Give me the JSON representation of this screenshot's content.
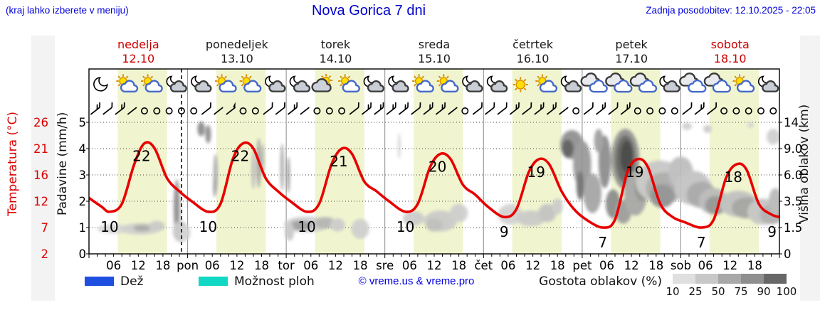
{
  "header": {
    "hint": "(kraj lahko izberete v meniju)",
    "title": "Nova Gorica 7 dni",
    "updated": "Zadnja posodobitev: 12.10.2025 - 22:05"
  },
  "days": [
    {
      "name": "nedelja",
      "date": "12.10",
      "color": "#cc0000"
    },
    {
      "name": "ponedeljek",
      "date": "13.10",
      "color": "#1a1a1a"
    },
    {
      "name": "torek",
      "date": "14.10",
      "color": "#1a1a1a"
    },
    {
      "name": "sreda",
      "date": "15.10",
      "color": "#1a1a1a"
    },
    {
      "name": "četrtek",
      "date": "16.10",
      "color": "#1a1a1a"
    },
    {
      "name": "petek",
      "date": "17.10",
      "color": "#1a1a1a"
    },
    {
      "name": "sobota",
      "date": "18.10",
      "color": "#cc0000"
    }
  ],
  "axes": {
    "temp_title": "Temperatura (°C)",
    "temp_ticks": [
      "26",
      "21",
      "16",
      "12",
      "7",
      "2"
    ],
    "precip_title": "Padavine (mm/h)",
    "precip_ticks": [
      "5",
      "4",
      "3",
      "2",
      "1",
      "0"
    ],
    "height_title": "Višina oblakov (km)",
    "height_ticks": [
      "14",
      "9.0",
      "6.0",
      "3.5",
      "1.5",
      "0"
    ],
    "hour_labels": [
      "06",
      "12",
      "18"
    ],
    "day_abbr": [
      "pon",
      "tor",
      "sre",
      "čet",
      "pet",
      "sob"
    ]
  },
  "legend": {
    "rain_label": "Dež",
    "rain_color": "#1f4fe0",
    "showers_label": "Možnost ploh",
    "showers_color": "#10d8c4",
    "copyright": "© vreme.us & vreme.pro",
    "density_label": "Gostota oblakov (%)",
    "density_ticks": [
      "10",
      "25",
      "50",
      "75",
      "90",
      "100"
    ],
    "density_colors": [
      "#dfdfdf",
      "#c8c8c8",
      "#a8a8a8",
      "#8f8f8f",
      "#686868"
    ]
  },
  "chart_data": {
    "type": "line",
    "title": "Nova Gorica 7 dni",
    "x_unit": "hours from 12.10.2025 00:00",
    "x_range": [
      0,
      168
    ],
    "now_hour": 22.5,
    "daylight": [
      7,
      19
    ],
    "band_color": "#f1f5cf",
    "temp_scale_map": [
      [
        2,
        0
      ],
      [
        7,
        1
      ],
      [
        12,
        2
      ],
      [
        16,
        3
      ],
      [
        21,
        4
      ],
      [
        26,
        5
      ]
    ],
    "height_scale_map": [
      [
        0,
        0
      ],
      [
        1.5,
        1
      ],
      [
        3.5,
        2
      ],
      [
        6,
        3
      ],
      [
        9,
        4
      ],
      [
        14,
        5
      ]
    ],
    "temperature": {
      "color": "#e80000",
      "points": [
        [
          0,
          12.5
        ],
        [
          3,
          11
        ],
        [
          5,
          10
        ],
        [
          8,
          11.5
        ],
        [
          11,
          18
        ],
        [
          13.5,
          22
        ],
        [
          16,
          21
        ],
        [
          19,
          15.5
        ],
        [
          22,
          13.5
        ],
        [
          25,
          12
        ],
        [
          29,
          10
        ],
        [
          32,
          11.5
        ],
        [
          35,
          19
        ],
        [
          37.5,
          22
        ],
        [
          40,
          21
        ],
        [
          43,
          15.5
        ],
        [
          46,
          13.5
        ],
        [
          49,
          12
        ],
        [
          53,
          10
        ],
        [
          56,
          11.5
        ],
        [
          59,
          18
        ],
        [
          61.5,
          21
        ],
        [
          64,
          20
        ],
        [
          67,
          15
        ],
        [
          70,
          13.5
        ],
        [
          73,
          12
        ],
        [
          77,
          10
        ],
        [
          80,
          11.5
        ],
        [
          83,
          17.5
        ],
        [
          85.5,
          20
        ],
        [
          88,
          19
        ],
        [
          91,
          14.5
        ],
        [
          94,
          13
        ],
        [
          97,
          11
        ],
        [
          101,
          9
        ],
        [
          104,
          10.5
        ],
        [
          107,
          16.5
        ],
        [
          109.5,
          19
        ],
        [
          112,
          18
        ],
        [
          115,
          13.5
        ],
        [
          118,
          10.5
        ],
        [
          121,
          8.5
        ],
        [
          125,
          7
        ],
        [
          128,
          8.5
        ],
        [
          131,
          16.5
        ],
        [
          133.5,
          19
        ],
        [
          136,
          17.5
        ],
        [
          139,
          11.5
        ],
        [
          142,
          9
        ],
        [
          145,
          8
        ],
        [
          149,
          7
        ],
        [
          152,
          8.5
        ],
        [
          155,
          15.5
        ],
        [
          157.5,
          18
        ],
        [
          160,
          17
        ],
        [
          163,
          11.5
        ],
        [
          166,
          9.5
        ],
        [
          168,
          9
        ]
      ]
    },
    "temp_labels": [
      {
        "h": 12.8,
        "v": 22
      },
      {
        "h": 36.8,
        "v": 22
      },
      {
        "h": 60.8,
        "v": 21
      },
      {
        "h": 84.8,
        "v": 20
      },
      {
        "h": 108.8,
        "v": 19
      },
      {
        "h": 132.8,
        "v": 19
      },
      {
        "h": 156.8,
        "v": 18
      },
      {
        "h": 5,
        "v": 10,
        "min": true
      },
      {
        "h": 29,
        "v": 10,
        "min": true
      },
      {
        "h": 53,
        "v": 10,
        "min": true
      },
      {
        "h": 77,
        "v": 10,
        "min": true
      },
      {
        "h": 101,
        "v": 9,
        "min": true
      },
      {
        "h": 125,
        "v": 7,
        "min": true
      },
      {
        "h": 149,
        "v": 7,
        "min": true
      },
      {
        "h": 167,
        "v": 9,
        "min": true
      }
    ],
    "icons": {
      "hours": [
        3,
        9,
        15,
        21
      ],
      "per_day": [
        [
          "moon",
          "sun-cloud",
          "sun-cloud",
          "moon-cloud"
        ],
        [
          "moon-cloud",
          "sun-cloud",
          "sun-cloud",
          "moon-cloud"
        ],
        [
          "moon-cloud",
          "cloud-sun",
          "sun-cloud",
          "moon-cloud"
        ],
        [
          "moon-cloud",
          "sun-cloud",
          "sun-cloud",
          "moon-cloud"
        ],
        [
          "moon-cloud",
          "sun",
          "sun-cloud",
          "moon-cloud"
        ],
        [
          "clouds",
          "clouds",
          "clouds",
          "moon-cloud"
        ],
        [
          "clouds",
          "clouds",
          "sun-cloud",
          "moon-cloud"
        ]
      ]
    },
    "wind": {
      "hour_start": 1.5,
      "hour_step": 3,
      "per_day": [
        "BbBacccc",
        "cbafccbb",
        "BacccbBB",
        "BBbBBacb",
        "bbBbBBac",
        "bBbBcccc",
        "bBbccccc"
      ]
    },
    "clouds": [
      {
        "h": 6,
        "u": 0.95,
        "rh": 4,
        "ru": 0.18,
        "c": "#d8d8d8"
      },
      {
        "h": 12.5,
        "u": 0.95,
        "rh": 5,
        "ru": 0.22,
        "c": "#cfcfcf"
      },
      {
        "h": 13,
        "u": 0.98,
        "rh": 2.2,
        "ru": 0.13,
        "c": "#a9a9a9"
      },
      {
        "h": 16.5,
        "u": 1.05,
        "rh": 2,
        "ru": 0.2,
        "c": "#c9c9c9"
      },
      {
        "h": 21.4,
        "u": 1.7,
        "rh": 0.9,
        "ru": 1.15,
        "c": "#b5b5b5"
      },
      {
        "h": 21.3,
        "u": 1.8,
        "rh": 0.5,
        "ru": 0.95,
        "c": "#868686"
      },
      {
        "h": 22.3,
        "u": 0.85,
        "rh": 1.9,
        "ru": 0.4,
        "c": "#c6c6c6"
      },
      {
        "h": 23.5,
        "u": 0.8,
        "rh": 1.2,
        "ru": 0.3,
        "c": "#d2d2d2"
      },
      {
        "h": 27.3,
        "u": 4.75,
        "rh": 0.9,
        "ru": 0.28,
        "c": "#8a8a8a"
      },
      {
        "h": 29,
        "u": 4.55,
        "rh": 0.7,
        "ru": 0.35,
        "c": "#8c8c8c"
      },
      {
        "h": 30.8,
        "u": 3.05,
        "rh": 0.55,
        "ru": 0.75,
        "c": "#ababab"
      },
      {
        "h": 30.6,
        "u": 2.55,
        "rh": 0.4,
        "ru": 0.4,
        "c": "#999999"
      },
      {
        "h": 40,
        "u": 3.2,
        "rh": 0.5,
        "ru": 0.75,
        "c": "#bdbdbd"
      },
      {
        "h": 41.3,
        "u": 3.45,
        "rh": 0.55,
        "ru": 0.95,
        "c": "#a3a3a3"
      },
      {
        "h": 42.3,
        "u": 3.6,
        "rh": 0.4,
        "ru": 0.6,
        "c": "#b8b8b8"
      },
      {
        "h": 47,
        "u": 3.3,
        "rh": 0.5,
        "ru": 0.9,
        "c": "#b0b0b0"
      },
      {
        "h": 48.5,
        "u": 3.0,
        "rh": 0.4,
        "ru": 0.7,
        "c": "#9a9a9a"
      },
      {
        "h": 53,
        "u": 1.12,
        "rh": 5.5,
        "ru": 0.3,
        "c": "#cdcdcd"
      },
      {
        "h": 51.5,
        "u": 1.08,
        "rh": 2.8,
        "ru": 0.18,
        "c": "#9c9c9c"
      },
      {
        "h": 57.5,
        "u": 1.18,
        "rh": 2.6,
        "ru": 0.22,
        "c": "#b3b3b3"
      },
      {
        "h": 48.8,
        "u": 0.85,
        "rh": 1.1,
        "ru": 0.35,
        "c": "#c8c8c8"
      },
      {
        "h": 60.5,
        "u": 1.1,
        "rh": 1.8,
        "ru": 0.25,
        "c": "#cccccc"
      },
      {
        "h": 66,
        "u": 0.95,
        "rh": 2.2,
        "ru": 0.38,
        "c": "#cfcfcf"
      },
      {
        "h": 75.5,
        "u": 4.1,
        "rh": 0.35,
        "ru": 0.5,
        "c": "#d4d4d4"
      },
      {
        "h": 79,
        "u": 1.35,
        "rh": 2.6,
        "ru": 0.28,
        "c": "#cbcbcb"
      },
      {
        "h": 85.5,
        "u": 1.25,
        "rh": 4,
        "ru": 0.4,
        "c": "#c9c9c9"
      },
      {
        "h": 90,
        "u": 1.55,
        "rh": 2.2,
        "ru": 0.35,
        "c": "#cdcdcd"
      },
      {
        "h": 84,
        "u": 1.1,
        "rh": 2,
        "ru": 0.25,
        "c": "#bdbdbd"
      },
      {
        "h": 102.5,
        "u": 1.5,
        "rh": 3,
        "ru": 0.4,
        "c": "#d2d2d2"
      },
      {
        "h": 107.5,
        "u": 1.35,
        "rh": 3.5,
        "ru": 0.3,
        "c": "#c9c9c9"
      },
      {
        "h": 111.5,
        "u": 1.55,
        "rh": 2.2,
        "ru": 0.35,
        "c": "#c2c2c2"
      },
      {
        "h": 114,
        "u": 1.8,
        "rh": 1.3,
        "ru": 0.3,
        "c": "#cbcbcb"
      },
      {
        "h": 117.5,
        "u": 4.15,
        "rh": 2.8,
        "ru": 0.55,
        "c": "#8e8e8e"
      },
      {
        "h": 116.5,
        "u": 4.0,
        "rh": 1.4,
        "ru": 0.35,
        "c": "#5a5a5a"
      },
      {
        "h": 120,
        "u": 3.4,
        "rh": 2.2,
        "ru": 0.9,
        "c": "#979797"
      },
      {
        "h": 119.5,
        "u": 2.6,
        "rh": 0.9,
        "ru": 0.55,
        "c": "#6e6e6e"
      },
      {
        "h": 122.5,
        "u": 2.3,
        "rh": 2.2,
        "ru": 0.75,
        "c": "#a3a3a3"
      },
      {
        "h": 125.5,
        "u": 3.5,
        "rh": 1.5,
        "ru": 1.0,
        "c": "#8a8a8a"
      },
      {
        "h": 124,
        "u": 4.3,
        "rh": 1.1,
        "ru": 0.45,
        "c": "#9e9e9e"
      },
      {
        "h": 130.5,
        "u": 3.6,
        "rh": 3.4,
        "ru": 1.15,
        "c": "#909090"
      },
      {
        "h": 130.5,
        "u": 3.6,
        "rh": 2.4,
        "ru": 0.9,
        "c": "#606060"
      },
      {
        "h": 130.8,
        "u": 3.7,
        "rh": 1.5,
        "ru": 0.6,
        "c": "#404040"
      },
      {
        "h": 127.5,
        "u": 1.9,
        "rh": 1.8,
        "ru": 0.55,
        "c": "#8a8a8a"
      },
      {
        "h": 130,
        "u": 1.6,
        "rh": 2,
        "ru": 0.45,
        "c": "#9b9b9b"
      },
      {
        "h": 133,
        "u": 2.3,
        "rh": 2.8,
        "ru": 0.85,
        "c": "#a6a6a6"
      },
      {
        "h": 134.5,
        "u": 2.6,
        "rh": 1.8,
        "ru": 0.6,
        "c": "#8f8f8f"
      },
      {
        "h": 139,
        "u": 2.75,
        "rh": 6,
        "ru": 0.8,
        "c": "#c6c6c6"
      },
      {
        "h": 140,
        "u": 2.5,
        "rh": 4.5,
        "ru": 0.6,
        "c": "#aaaaaa"
      },
      {
        "h": 139.5,
        "u": 2.2,
        "rh": 3,
        "ru": 0.45,
        "c": "#8f8f8f"
      },
      {
        "h": 144,
        "u": 3.1,
        "rh": 3,
        "ru": 0.6,
        "c": "#bcbcbc"
      },
      {
        "h": 147,
        "u": 2.5,
        "rh": 4.5,
        "ru": 0.65,
        "c": "#c2c2c2"
      },
      {
        "h": 149,
        "u": 2.25,
        "rh": 3.6,
        "ru": 0.5,
        "c": "#a6a6a6"
      },
      {
        "h": 152,
        "u": 2.0,
        "rh": 3.6,
        "ru": 0.5,
        "c": "#b8b8b8"
      },
      {
        "h": 152.5,
        "u": 1.85,
        "rh": 2.6,
        "ru": 0.35,
        "c": "#939393"
      },
      {
        "h": 158,
        "u": 1.9,
        "rh": 4.6,
        "ru": 0.5,
        "c": "#bfbfbf"
      },
      {
        "h": 160,
        "u": 1.75,
        "rh": 3.6,
        "ru": 0.4,
        "c": "#a2a2a2"
      },
      {
        "h": 164,
        "u": 1.6,
        "rh": 3.8,
        "ru": 0.5,
        "c": "#c4c4c4"
      },
      {
        "h": 166,
        "u": 1.5,
        "rh": 2.8,
        "ru": 0.38,
        "c": "#adadad"
      },
      {
        "h": 167,
        "u": 2.0,
        "rh": 1.6,
        "ru": 0.5,
        "c": "#b8b8b8"
      },
      {
        "h": 145.5,
        "u": 4.85,
        "rh": 1.2,
        "ru": 0.14,
        "c": "#cfcfcf"
      },
      {
        "h": 150.5,
        "u": 4.75,
        "rh": 1.0,
        "ru": 0.15,
        "c": "#c9c9c9"
      },
      {
        "h": 161,
        "u": 4.9,
        "rh": 0.8,
        "ru": 0.12,
        "c": "#d5d5d5"
      },
      {
        "h": 166.5,
        "u": 4.45,
        "rh": 1.6,
        "ru": 0.3,
        "c": "#cecece"
      }
    ]
  }
}
